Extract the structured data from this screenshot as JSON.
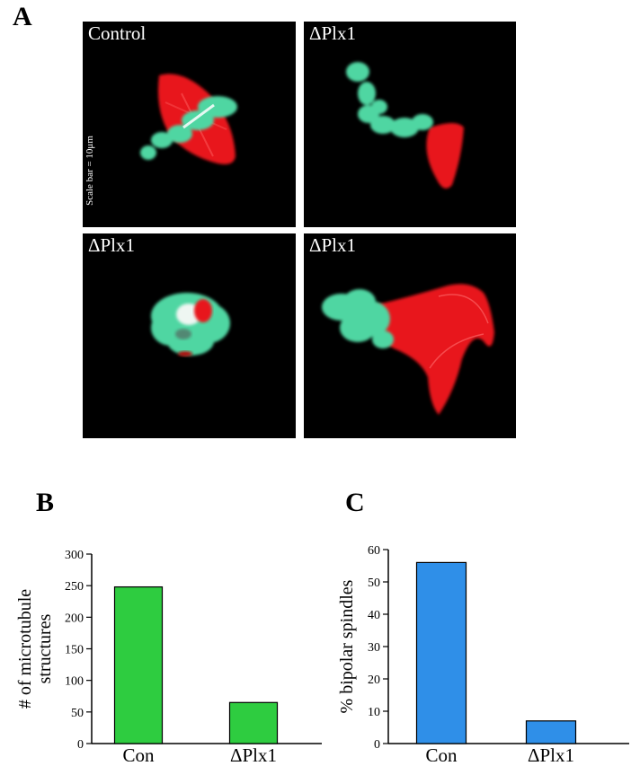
{
  "figure": {
    "panel_a": {
      "letter": "A",
      "images": [
        {
          "label": "Control",
          "scale_text": "Scale bar = 10μm"
        },
        {
          "label": "ΔPlx1"
        },
        {
          "label": "ΔPlx1"
        },
        {
          "label": "ΔPlx1"
        }
      ]
    },
    "panel_b_letter": "B",
    "panel_c_letter": "C"
  },
  "chart_data": [
    {
      "type": "bar",
      "categories": [
        "Con",
        "ΔPlx1"
      ],
      "values": [
        248,
        65
      ],
      "ylabel": "# of  microtubule structures",
      "ylim": [
        0,
        300
      ],
      "yticks": [
        0,
        50,
        100,
        150,
        200,
        250,
        300
      ],
      "color": "#2ecc40"
    },
    {
      "type": "bar",
      "categories": [
        "Con",
        "ΔPlx1"
      ],
      "values": [
        56,
        7
      ],
      "ylabel": "% bipolar spindles",
      "ylim": [
        0,
        60
      ],
      "yticks": [
        0,
        10,
        20,
        30,
        40,
        50,
        60
      ],
      "color": "#2f8fe8"
    }
  ]
}
